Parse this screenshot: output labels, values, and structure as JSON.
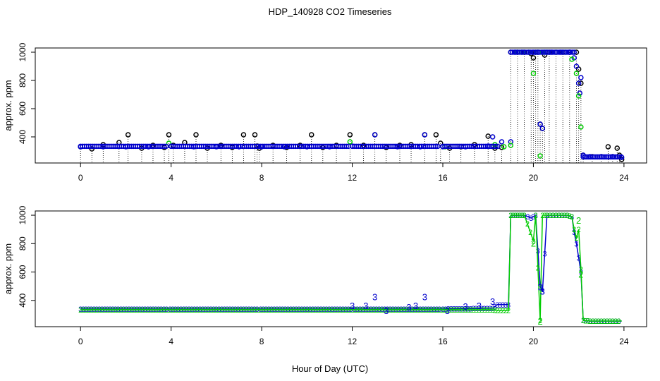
{
  "title": "HDP_140928  CO2 Timeseries",
  "xlabel": "Hour of Day (UTC)",
  "colors": {
    "black": "#000000",
    "blue": "#0000cc",
    "green": "#00cc00",
    "cyan": "#00aaaa"
  },
  "chart_data": [
    {
      "type": "scatter",
      "title": "HDP_140928  CO2 Timeseries",
      "xlabel": "Hour of Day (UTC)",
      "ylabel": "approx. ppm",
      "xlim": [
        -2,
        25
      ],
      "ylim": [
        215,
        1030
      ],
      "xticks": [
        0,
        4,
        8,
        12,
        16,
        20,
        24
      ],
      "yticks": [
        400,
        600,
        800,
        1000
      ],
      "grid": false,
      "markers": "open circles with vertical drop lines",
      "series": [
        {
          "color": "black",
          "x": [
            0,
            0.5,
            1,
            1.7,
            2.1,
            2.7,
            3.2,
            3.7,
            3.9,
            4.1,
            4.6,
            5.1,
            5.6,
            6.2,
            6.7,
            7.2,
            7.7,
            7.8,
            7.9,
            8.5,
            9.1,
            9.7,
            10.2,
            10.7,
            11.3,
            11.9,
            12.5,
            13.0,
            13.5,
            14.1,
            14.6,
            15.2,
            15.7,
            15.9,
            16.3,
            16.8,
            17.4,
            18.0,
            18.3,
            18.6,
            19.0,
            19.3,
            19.6,
            19.9,
            20.0,
            20.1,
            20.2,
            20.3,
            20.4,
            20.5,
            20.7,
            21.0,
            21.3,
            21.6,
            21.9,
            22.0,
            22.1,
            22.2,
            22.6,
            23.0,
            23.3,
            23.5,
            23.7,
            23.8,
            23.9
          ],
          "y": [
            330,
            315,
            345,
            360,
            415,
            320,
            340,
            325,
            415,
            340,
            360,
            415,
            320,
            340,
            325,
            415,
            415,
            335,
            320,
            340,
            325,
            340,
            415,
            325,
            340,
            415,
            340,
            415,
            325,
            340,
            345,
            415,
            415,
            355,
            320,
            330,
            345,
            405,
            320,
            325,
            1000,
            1000,
            1000,
            990,
            960,
            1000,
            1000,
            490,
            460,
            980,
            1000,
            1000,
            1000,
            1000,
            1000,
            880,
            780,
            270,
            260,
            260,
            330,
            260,
            320,
            270,
            240
          ]
        },
        {
          "color": "blue",
          "x": [
            0,
            1,
            2,
            3,
            4,
            5,
            6,
            7,
            8,
            9,
            10,
            11,
            12,
            13,
            14,
            15,
            15.2,
            16,
            17,
            18,
            18.2,
            18.6,
            19.0,
            19.2,
            19.5,
            19.8,
            20.0,
            20.2,
            20.3,
            20.4,
            20.5,
            20.6,
            20.8,
            21.2,
            21.6,
            21.8,
            21.9,
            22.0,
            22.05,
            22.1,
            22.2,
            22.5,
            23.0,
            23.5,
            23.9
          ],
          "y": [
            330,
            330,
            330,
            330,
            335,
            330,
            330,
            330,
            330,
            330,
            330,
            330,
            335,
            415,
            330,
            330,
            415,
            330,
            330,
            335,
            400,
            365,
            365,
            1000,
            1000,
            1000,
            1000,
            1000,
            490,
            460,
            1000,
            1000,
            1000,
            1000,
            1000,
            960,
            900,
            780,
            710,
            820,
            270,
            260,
            260,
            260,
            255
          ]
        },
        {
          "color": "green",
          "x": [
            3.9,
            11.9,
            16.1,
            18.3,
            18.7,
            19.0,
            19.3,
            19.5,
            19.8,
            20.0,
            20.2,
            20.3,
            20.4,
            20.6,
            21.0,
            21.4,
            21.7,
            21.9,
            22.0,
            22.1
          ],
          "y": [
            355,
            365,
            330,
            345,
            330,
            340,
            1000,
            1000,
            1000,
            850,
            1000,
            265,
            1000,
            1000,
            1000,
            1000,
            950,
            850,
            690,
            470
          ]
        }
      ]
    },
    {
      "type": "line",
      "ylabel": "approx. ppm",
      "xlim": [
        -2,
        25
      ],
      "ylim": [
        215,
        1030
      ],
      "xticks": [
        0,
        4,
        8,
        12,
        16,
        20,
        24
      ],
      "yticks": [
        400,
        600,
        800,
        1000
      ],
      "grid": false,
      "markers": "digit characters 1/2/3 plotted at each point",
      "series": [
        {
          "color": "blue",
          "marker": "3",
          "x": [
            0,
            3.8,
            3.95,
            7.8,
            7.95,
            11.95,
            12.1,
            15.85,
            16.0,
            18.2,
            18.4,
            18.9,
            19.0,
            19.3,
            19.6,
            19.9,
            20.1,
            20.3,
            20.4,
            20.6,
            21.0,
            21.5,
            21.7,
            21.8,
            21.9,
            22.0,
            22.1,
            22.2,
            22.5,
            23.0,
            23.5,
            23.9
          ],
          "y": [
            340,
            340,
            340,
            340,
            340,
            340,
            340,
            340,
            340,
            345,
            370,
            370,
            1000,
            1000,
            1000,
            980,
            1000,
            500,
            460,
            1000,
            1000,
            1000,
            990,
            880,
            800,
            700,
            600,
            260,
            255,
            255,
            255,
            255
          ]
        },
        {
          "color": "green",
          "marker": "2",
          "x": [
            0,
            3.8,
            3.95,
            7.8,
            7.95,
            11.95,
            12.1,
            15.85,
            16.0,
            18.2,
            18.4,
            18.9,
            19.0,
            19.3,
            19.6,
            20.0,
            20.1,
            20.3,
            20.4,
            20.6,
            21.0,
            21.5,
            21.7,
            21.8,
            21.9,
            22.0,
            22.1,
            22.2,
            22.5,
            23.0,
            23.5,
            23.9
          ],
          "y": [
            335,
            335,
            335,
            335,
            335,
            335,
            335,
            335,
            335,
            335,
            330,
            330,
            1000,
            1000,
            1000,
            820,
            1000,
            260,
            1000,
            1000,
            1000,
            1000,
            990,
            900,
            840,
            900,
            620,
            260,
            255,
            255,
            255,
            255
          ]
        }
      ],
      "annotations": [
        {
          "text": "3",
          "x": 13.0,
          "y": 420,
          "color": "blue"
        },
        {
          "text": "3",
          "x": 15.2,
          "y": 420,
          "color": "blue"
        },
        {
          "text": "3",
          "x": 18.2,
          "y": 390,
          "color": "blue"
        },
        {
          "text": "3",
          "x": 12.0,
          "y": 360,
          "color": "blue"
        },
        {
          "text": "3",
          "x": 12.6,
          "y": 360,
          "color": "blue"
        },
        {
          "text": "3",
          "x": 14.5,
          "y": 350,
          "color": "blue"
        },
        {
          "text": "3",
          "x": 14.8,
          "y": 360,
          "color": "blue"
        },
        {
          "text": "3",
          "x": 17.0,
          "y": 355,
          "color": "blue"
        },
        {
          "text": "3",
          "x": 17.6,
          "y": 360,
          "color": "blue"
        },
        {
          "text": "3",
          "x": 13.5,
          "y": 325,
          "color": "blue"
        },
        {
          "text": "3",
          "x": 16.2,
          "y": 325,
          "color": "blue"
        },
        {
          "text": "2",
          "x": 20.0,
          "y": 800,
          "color": "green"
        },
        {
          "text": "2",
          "x": 20.3,
          "y": 250,
          "color": "green"
        },
        {
          "text": "2",
          "x": 22.0,
          "y": 960,
          "color": "green"
        },
        {
          "text": "2",
          "x": 22.1,
          "y": 580,
          "color": "green"
        },
        {
          "text": "3",
          "x": 20.3,
          "y": 490,
          "color": "blue"
        },
        {
          "text": "3",
          "x": 20.4,
          "y": 460,
          "color": "blue"
        }
      ]
    }
  ]
}
